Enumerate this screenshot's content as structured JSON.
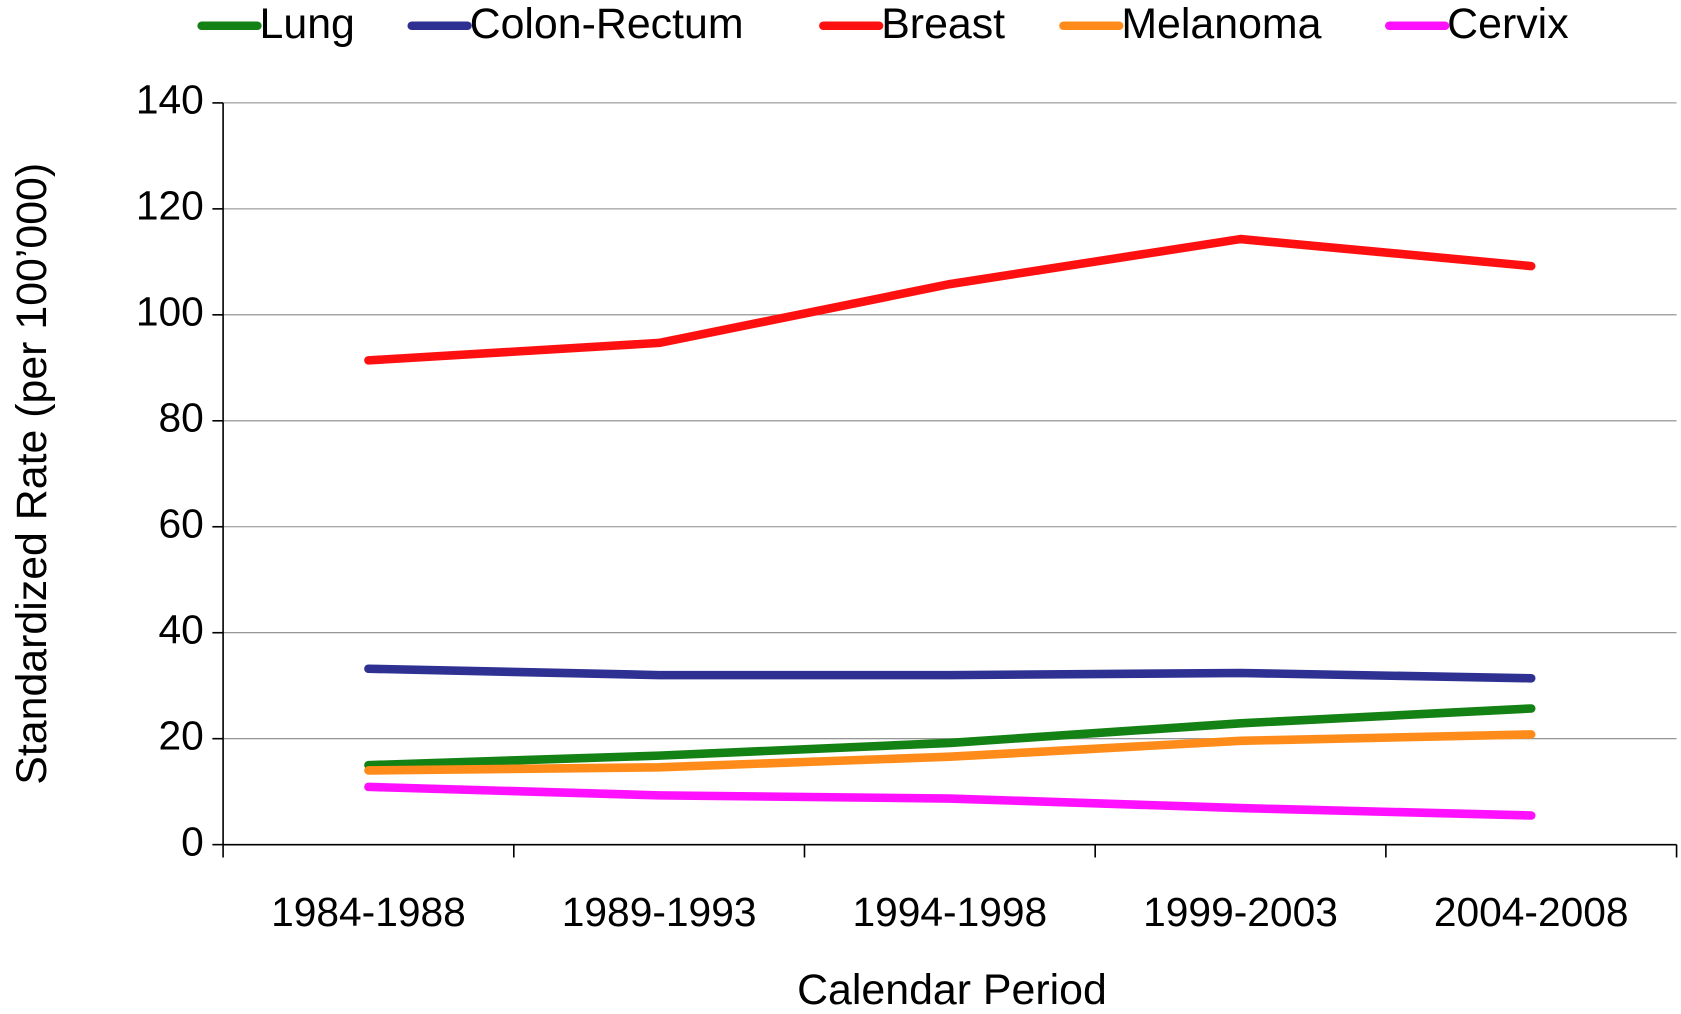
{
  "chart_data": {
    "type": "line",
    "x_label": "Calendar Period",
    "y_label": "Standardized Rate (per 100’000)",
    "categories": [
      "1984-1988",
      "1989-1993",
      "1994-1998",
      "1999-2003",
      "2004-2008"
    ],
    "series": [
      {
        "name": "Lung",
        "color": "#138113",
        "values": [
          15,
          16.8,
          19.2,
          22.9,
          25.7
        ]
      },
      {
        "name": "Colon-Rectum",
        "color": "#2e3192",
        "values": [
          33.2,
          32,
          32,
          32.4,
          31.4
        ]
      },
      {
        "name": "Breast",
        "color": "#ff1010",
        "values": [
          91.4,
          94.7,
          105.8,
          114.3,
          109.2
        ]
      },
      {
        "name": "Melanoma",
        "color": "#ff8c1a",
        "values": [
          14,
          14.6,
          16.6,
          19.6,
          20.8
        ]
      },
      {
        "name": "Cervix",
        "color": "#ff10ff",
        "values": [
          10.9,
          9.3,
          8.7,
          6.9,
          5.5
        ]
      }
    ],
    "ylim": [
      0,
      140
    ],
    "yticks": [
      0,
      20,
      40,
      60,
      80,
      100,
      120,
      140
    ],
    "grid": true,
    "legend": "top"
  }
}
